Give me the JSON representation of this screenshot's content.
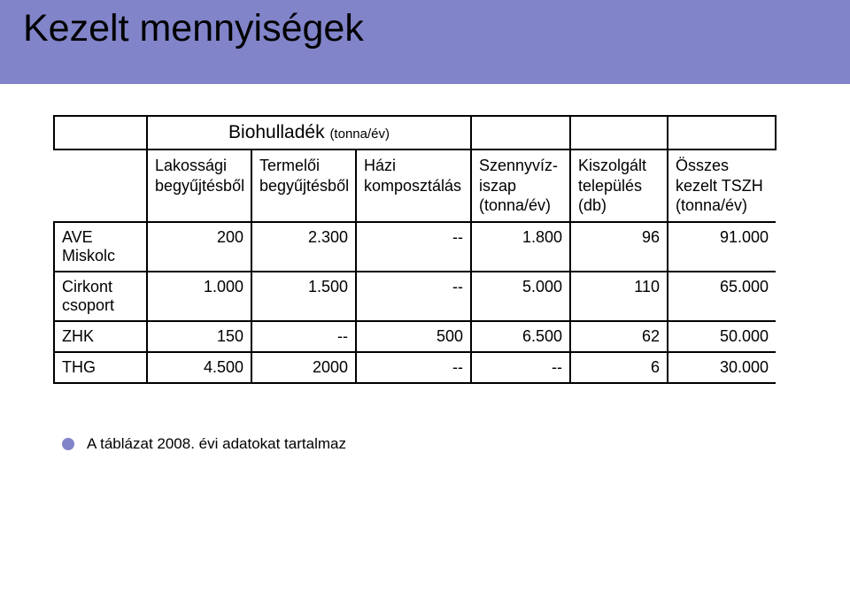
{
  "title": "Kezelt mennyiségek",
  "table": {
    "caption_big": "Biohulladék ",
    "caption_small": "(tonna/év)",
    "columns": [
      "Lakossági begyűjtésből",
      "Termelői begyűjtésből",
      "Házi komposztálás",
      "Szennyvíz-iszap (tonna/év)",
      "Kiszolgált település (db)",
      "Összes kezelt TSZH (tonna/év)"
    ],
    "rows": [
      {
        "label": "AVE Miskolc",
        "cells": [
          "200",
          "2.300",
          "--",
          "1.800",
          "96",
          "91.000"
        ]
      },
      {
        "label": "Cirkont csoport",
        "cells": [
          "1.000",
          "1.500",
          "--",
          "5.000",
          "110",
          "65.000"
        ]
      },
      {
        "label": "ZHK",
        "cells": [
          "150",
          "--",
          "500",
          "6.500",
          "62",
          "50.000"
        ]
      },
      {
        "label": "THG",
        "cells": [
          "4.500",
          "2000",
          "--",
          "--",
          "6",
          "30.000"
        ]
      }
    ]
  },
  "footnote": "A táblázat 2008. évi adatokat tartalmaz",
  "colors": {
    "band": "#8184c9",
    "bullet": "#8184c9",
    "border": "#000000",
    "background": "#ffffff",
    "text": "#000000"
  }
}
